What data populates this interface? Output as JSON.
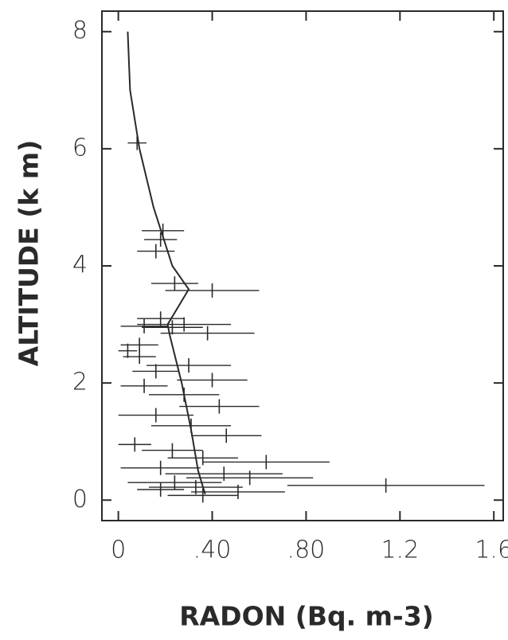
{
  "chart_data": {
    "type": "scatter",
    "xlabel": "RADON (Bq. m-3)",
    "ylabel": "ALTITUDE (k m)",
    "xlim": [
      -0.07,
      1.64
    ],
    "ylim": [
      -0.35,
      8.35
    ],
    "xticks": [
      0,
      {
        "value": 0.4,
        "label": ".40"
      },
      {
        "value": 0.8,
        "label": ".80"
      },
      1.2,
      1.6
    ],
    "yticks": [
      0,
      2,
      4,
      6,
      8
    ],
    "color": "#2a2a2a",
    "series": [
      {
        "type": "scatter",
        "x": [
          0.08,
          0.19,
          0.18,
          0.16,
          0.24,
          0.4,
          0.18,
          0.28,
          0.11,
          0.23,
          0.38,
          0.09,
          0.04,
          0.09,
          0.3,
          0.16,
          0.4,
          0.11,
          0.28,
          0.43,
          0.16,
          0.31,
          0.46,
          0.07,
          0.23,
          0.36,
          0.63,
          0.18,
          0.45,
          0.56,
          0.24,
          1.14,
          0.33,
          0.18,
          0.51,
          0.36
        ],
        "values": [
          6.1,
          4.6,
          4.45,
          4.25,
          3.7,
          3.58,
          3.1,
          3.0,
          2.97,
          2.95,
          2.85,
          2.65,
          2.55,
          2.45,
          2.3,
          2.2,
          2.05,
          1.95,
          1.8,
          1.6,
          1.45,
          1.27,
          1.1,
          0.95,
          0.85,
          0.72,
          0.65,
          0.55,
          0.45,
          0.38,
          0.3,
          0.25,
          0.22,
          0.18,
          0.14,
          0.08
        ],
        "xerr": [
          0.04,
          0.09,
          0.07,
          0.08,
          0.1,
          0.2,
          0.1,
          0.2,
          0.1,
          0.13,
          0.2,
          0.08,
          0.04,
          0.07,
          0.18,
          0.1,
          0.15,
          0.1,
          0.15,
          0.17,
          0.16,
          0.17,
          0.15,
          0.07,
          0.13,
          0.15,
          0.27,
          0.17,
          0.25,
          0.27,
          0.2,
          0.42,
          0.2,
          0.1,
          0.2,
          0.15
        ]
      },
      {
        "type": "line",
        "x": [
          0.04,
          0.05,
          0.09,
          0.15,
          0.19,
          0.23,
          0.3,
          0.21,
          0.22,
          0.27,
          0.31,
          0.34,
          0.37
        ],
        "values": [
          8,
          7,
          6,
          5,
          4.5,
          4,
          3.6,
          3.0,
          2.8,
          2,
          1.2,
          0.5,
          0.1
        ]
      }
    ]
  }
}
